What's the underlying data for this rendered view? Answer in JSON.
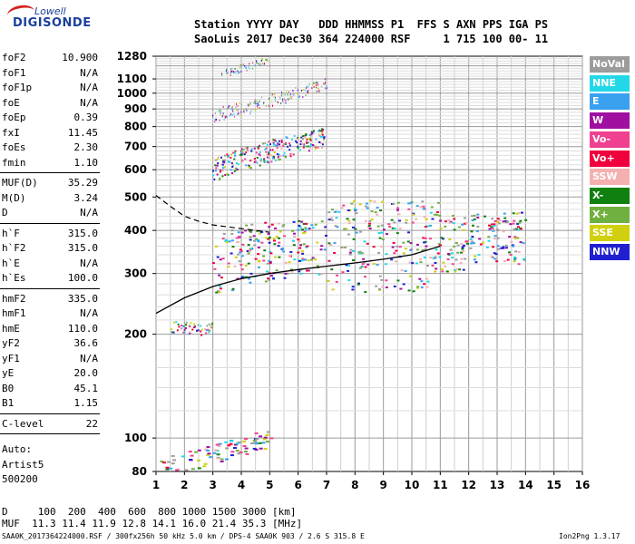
{
  "logo": {
    "line1": "Lowell",
    "line2": "DIGISONDE"
  },
  "header": {
    "row1": "Station YYYY DAY   DDD HHMMSS P1  FFS S AXN PPS IGA PS",
    "row2": "SaoLuis 2017 Dec30 364 224000 RSF     1 715 100 00- 11"
  },
  "params": {
    "group1": [
      {
        "key": "foF2",
        "value": "10.900"
      },
      {
        "key": "foF1",
        "value": "N/A"
      },
      {
        "key": "foF1p",
        "value": "N/A"
      },
      {
        "key": "foE",
        "value": "N/A"
      },
      {
        "key": "foEp",
        "value": "0.39"
      },
      {
        "key": "fxI",
        "value": "11.45"
      },
      {
        "key": "foEs",
        "value": "2.30"
      },
      {
        "key": "fmin",
        "value": "1.10"
      }
    ],
    "group2": [
      {
        "key": "MUF(D)",
        "value": "35.29"
      },
      {
        "key": "M(D)",
        "value": "3.24"
      },
      {
        "key": "D",
        "value": "N/A"
      }
    ],
    "group3": [
      {
        "key": "h`F",
        "value": "315.0"
      },
      {
        "key": "h`F2",
        "value": "315.0"
      },
      {
        "key": "h`E",
        "value": "N/A"
      },
      {
        "key": "h`Es",
        "value": "100.0"
      }
    ],
    "group4": [
      {
        "key": "hmF2",
        "value": "335.0"
      },
      {
        "key": "hmF1",
        "value": "N/A"
      },
      {
        "key": "hmE",
        "value": "110.0"
      },
      {
        "key": "yF2",
        "value": "36.6"
      },
      {
        "key": "yF1",
        "value": "N/A"
      },
      {
        "key": "yE",
        "value": "20.0"
      },
      {
        "key": "B0",
        "value": "45.1"
      },
      {
        "key": "B1",
        "value": "1.15"
      }
    ],
    "group5": [
      {
        "key": "C-level",
        "value": "22"
      }
    ],
    "auto": [
      "Auto:",
      "Artist5",
      "500200"
    ]
  },
  "legend": [
    {
      "label": "NoVal",
      "color": "#9c9c9c"
    },
    {
      "label": "NNE",
      "color": "#22d8e8"
    },
    {
      "label": "E",
      "color": "#3aa0f0"
    },
    {
      "label": "W",
      "color": "#a010a0"
    },
    {
      "label": "Vo-",
      "color": "#f04090"
    },
    {
      "label": "Vo+",
      "color": "#f0003c"
    },
    {
      "label": "SSW",
      "color": "#f4b0b0"
    },
    {
      "label": "X-",
      "color": "#108010"
    },
    {
      "label": "X+",
      "color": "#70b040"
    },
    {
      "label": "SSE",
      "color": "#d0d010"
    },
    {
      "label": "NNW",
      "color": "#2020d0"
    }
  ],
  "chart_data": {
    "type": "scatter",
    "title": "",
    "xlabel": "",
    "ylabel": "",
    "xlim": [
      1,
      16
    ],
    "ylim": [
      80,
      1280
    ],
    "y_scale": "log",
    "x_ticks": [
      1,
      2,
      3,
      4,
      5,
      6,
      7,
      8,
      9,
      10,
      11,
      12,
      13,
      14,
      15,
      16
    ],
    "y_ticks": [
      80,
      100,
      200,
      300,
      400,
      500,
      600,
      700,
      800,
      900,
      1000,
      1100,
      1280
    ],
    "grid": true,
    "traces": [
      {
        "name": "F-trace (1st hop)",
        "x": [
          3.0,
          4.0,
          5.0,
          6.0,
          7.0,
          8.0,
          9.0,
          10.0,
          11.0,
          12.0,
          13.0,
          14.0
        ],
        "y": [
          325,
          345,
          355,
          360,
          370,
          375,
          380,
          375,
          370,
          375,
          385,
          385
        ]
      },
      {
        "name": "F-trace (2nd hop)",
        "x": [
          3.0,
          4.0,
          5.0,
          6.0,
          7.0
        ],
        "y": [
          600,
          640,
          680,
          710,
          750
        ]
      },
      {
        "name": "F-trace (3rd hop)",
        "x": [
          3.0,
          4.0,
          5.0,
          6.0,
          7.0
        ],
        "y": [
          860,
          900,
          950,
          1000,
          1070
        ]
      },
      {
        "name": "F-trace (4th hop)",
        "x": [
          3.3,
          4.0,
          5.0
        ],
        "y": [
          1130,
          1180,
          1260
        ]
      },
      {
        "name": "Es (1st hop)",
        "x": [
          1.0,
          2.0,
          3.0,
          4.0,
          5.0
        ],
        "y": [
          80,
          85,
          90,
          95,
          100
        ]
      },
      {
        "name": "Es (2nd hop)",
        "x": [
          1.5,
          2.0,
          2.5,
          3.0
        ],
        "y": [
          210,
          210,
          205,
          210
        ]
      }
    ],
    "profile_solid": {
      "x": [
        1.0,
        2.0,
        3.0,
        4.0,
        5.0,
        6.0,
        7.0,
        8.0,
        9.0,
        10.0,
        11.0
      ],
      "y": [
        230,
        255,
        275,
        290,
        300,
        308,
        315,
        322,
        330,
        340,
        360
      ]
    },
    "profile_dashed": {
      "x": [
        1.0,
        1.5,
        2.0,
        2.5,
        3.0,
        3.5,
        4.0,
        4.5,
        5.0
      ],
      "y": [
        505,
        470,
        440,
        425,
        415,
        410,
        405,
        400,
        395
      ]
    }
  },
  "footer": {
    "row1": "D     100  200  400  600  800 1000 1500 3000 [km]",
    "row2": "MUF  11.3 11.4 11.9 12.8 14.1 16.0 21.4 35.3 [MHz]",
    "row3": "SAA0K_2017364224000.RSF / 300fx256h 50 kHz 5.0 km / DPS-4 SAA0K 903 / 2.6 S 315.8 E",
    "version": "Ion2Png 1.3.17"
  }
}
